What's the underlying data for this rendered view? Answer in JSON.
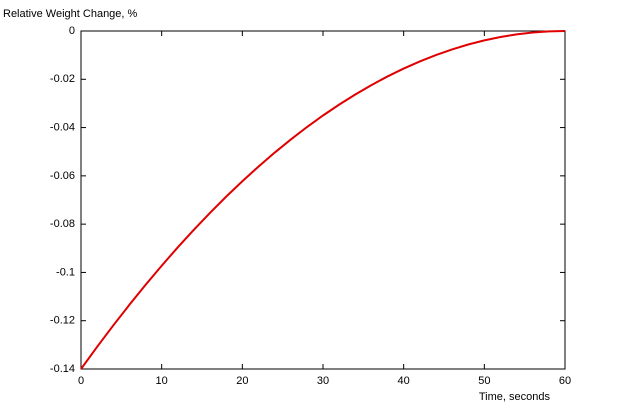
{
  "chart_data": {
    "type": "line",
    "ylabel": "Relative Weight Change, %",
    "xlabel": "Time, seconds",
    "x": [
      0,
      2,
      4,
      6,
      8,
      10,
      12,
      14,
      16,
      18,
      20,
      22,
      24,
      26,
      28,
      30,
      32,
      34,
      36,
      38,
      40,
      42,
      44,
      46,
      48,
      50,
      52,
      54,
      56,
      58,
      60
    ],
    "series": [
      {
        "color": "#e00000",
        "values": [
          -0.14,
          -0.13082,
          -0.12196,
          -0.1134,
          -0.10516,
          -0.09722,
          -0.0896,
          -0.08229,
          -0.07529,
          -0.0686,
          -0.06222,
          -0.05616,
          -0.0504,
          -0.04496,
          -0.03982,
          -0.035,
          -0.03049,
          -0.02629,
          -0.0224,
          -0.01882,
          -0.01556,
          -0.0126,
          -0.00996,
          -0.00762,
          -0.0056,
          -0.00389,
          -0.00249,
          -0.0014,
          -0.00062,
          -0.00016,
          0
        ]
      }
    ],
    "xlim": [
      0,
      60
    ],
    "xticks": [
      0,
      10,
      20,
      30,
      40,
      50,
      60
    ],
    "ylim": [
      -0.14,
      0
    ],
    "yticks": [
      0,
      -0.02,
      -0.04,
      -0.06,
      -0.08,
      -0.1,
      -0.12,
      -0.14
    ],
    "grid": false
  }
}
